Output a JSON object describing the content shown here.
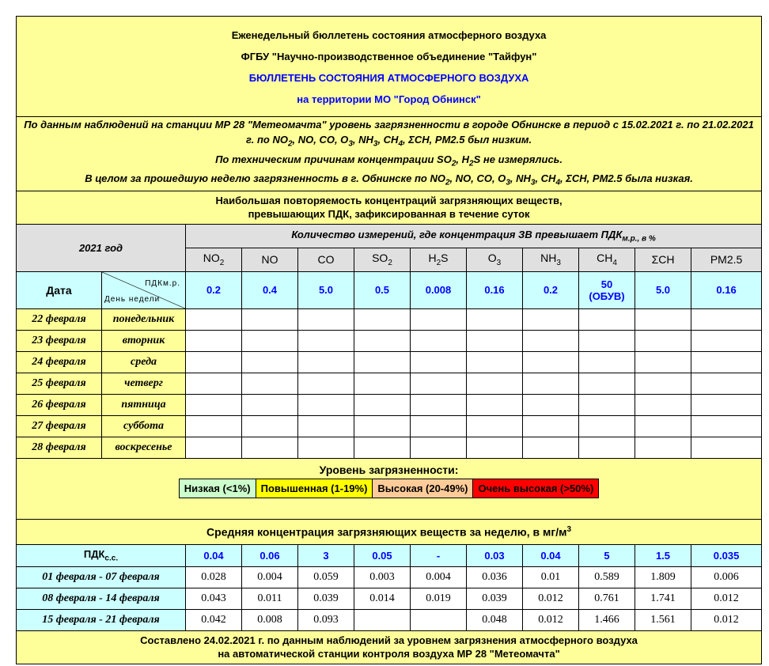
{
  "header": {
    "line1": "Еженедельный бюллетень состояния атмосферного воздуха",
    "line2": "ФГБУ \"Научно-производственное объединение \"Тайфун\"",
    "line3": "БЮЛЛЕТЕНЬ СОСТОЯНИЯ АТМОСФЕРНОГО ВОЗДУХА",
    "line4": "на территории МО \"Город Обнинск\""
  },
  "summary": {
    "p1": [
      [
        "По данным наблюдений на станции МР 28 \"Метеомачта\" уровень загрязненности в городе Обнинске в период с 15.02.2021 г. по 21.02.2021 г. по NO",
        ""
      ],
      [
        "",
        "2"
      ],
      [
        ", NO, CO, O",
        ""
      ],
      [
        "",
        "3"
      ],
      [
        ", NH",
        ""
      ],
      [
        "",
        "3"
      ],
      [
        ", CH",
        ""
      ],
      [
        "",
        "4"
      ],
      [
        ", ΣCH, PM2.5 был низким.",
        ""
      ]
    ],
    "p2": [
      [
        "По техническим причинам концентрации SO",
        ""
      ],
      [
        "",
        "2"
      ],
      [
        ", H",
        ""
      ],
      [
        "",
        "2"
      ],
      [
        "S не измерялись.",
        ""
      ]
    ],
    "p3": [
      [
        "В целом за прошедшую неделю загрязненность в г. Обнинске по NO",
        ""
      ],
      [
        "",
        "2"
      ],
      [
        ", NO, CO, O",
        ""
      ],
      [
        "",
        "3"
      ],
      [
        ", NH",
        ""
      ],
      [
        "",
        "3"
      ],
      [
        ", CH",
        ""
      ],
      [
        "",
        "4"
      ],
      [
        ", ΣCH, PM2.5 была низкая.",
        ""
      ]
    ]
  },
  "section1": {
    "title_line1": "Наибольшая повторяемость концентраций загрязняющих веществ,",
    "title_line2": "превышающих ПДК, зафиксированная в течение суток",
    "year": "2021 год",
    "measure_title": "Количество измерений, где концентрация ЗВ превышает ПДК",
    "measure_sub": "м.р., в %",
    "date_label": "Дата",
    "diag_top": "ПДКм.р.",
    "diag_bottom": "День недели",
    "pollutants": [
      {
        "base": "NO",
        "sub": "2"
      },
      {
        "base": "NO",
        "sub": ""
      },
      {
        "base": "CO",
        "sub": ""
      },
      {
        "base": "SO",
        "sub": "2"
      },
      {
        "base": "H",
        "sub": "2",
        "tail": "S"
      },
      {
        "base": "O",
        "sub": "3"
      },
      {
        "base": "NH",
        "sub": "3"
      },
      {
        "base": "CH",
        "sub": "4"
      },
      {
        "base": "ΣCH",
        "sub": ""
      },
      {
        "base": "PM2.5",
        "sub": ""
      }
    ],
    "pdk_mr": [
      "0.2",
      "0.4",
      "5.0",
      "0.5",
      "0.008",
      "0.16",
      "0.2",
      "50\n(ОБУВ)",
      "5.0",
      "0.16"
    ],
    "days": [
      {
        "date": "22 февраля",
        "weekday": "понедельник"
      },
      {
        "date": "23 февраля",
        "weekday": "вторник"
      },
      {
        "date": "24 февраля",
        "weekday": "среда"
      },
      {
        "date": "25 февраля",
        "weekday": "четверг"
      },
      {
        "date": "26 февраля",
        "weekday": "пятница"
      },
      {
        "date": "27 февраля",
        "weekday": "суббота"
      },
      {
        "date": "28 февраля",
        "weekday": "воскресенье"
      }
    ]
  },
  "legend": {
    "title": "Уровень загрязненности:",
    "items": [
      {
        "label": "Низкая (<1%)",
        "color": "#ccffcc"
      },
      {
        "label": "Повышенная (1-19%)",
        "color": "#ffff00"
      },
      {
        "label": "Высокая (20-49%)",
        "color": "#ffcc99"
      },
      {
        "label": "Очень высокая (>50%)",
        "color": "#ff0000"
      }
    ]
  },
  "section2": {
    "title": "Средняя концентрация загрязняющих веществ за неделю, в мг/м",
    "title_sup": "3",
    "pdk_label": "ПДК",
    "pdk_sub": "с.с.",
    "pdk_ss": [
      "0.04",
      "0.06",
      "3",
      "0.05",
      "-",
      "0.03",
      "0.04",
      "5",
      "1.5",
      "0.035"
    ],
    "rows": [
      {
        "period": "01 февраля - 07 февраля",
        "values": [
          "0.028",
          "0.004",
          "0.059",
          "0.003",
          "0.004",
          "0.036",
          "0.01",
          "0.589",
          "1.809",
          "0.006"
        ]
      },
      {
        "period": "08 февраля - 14 февраля",
        "values": [
          "0.043",
          "0.011",
          "0.039",
          "0.014",
          "0.019",
          "0.039",
          "0.012",
          "0.761",
          "1.741",
          "0.012"
        ]
      },
      {
        "period": "15 февраля - 21 февраля",
        "values": [
          "0.042",
          "0.008",
          "0.093",
          "",
          "",
          "0.048",
          "0.012",
          "1.466",
          "1.561",
          "0.012"
        ]
      }
    ]
  },
  "footer": {
    "line1": "Составлено 24.02.2021 г. по данным наблюдений за уровнем загрязнения атмосферного воздуха",
    "line2": "на автоматической станции контроля воздуха МР 28 \"Метеомачта\""
  },
  "colors": {
    "background": "#ffff99",
    "header_gray": "#e0e0e0",
    "cyan": "#ccffff",
    "blue_text": "#0000ff"
  }
}
